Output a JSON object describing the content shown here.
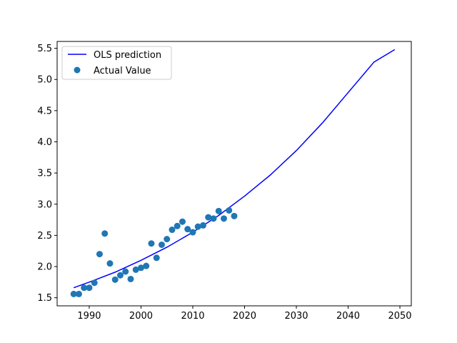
{
  "chart_data": {
    "type": "scatter",
    "title": "",
    "xlabel": "",
    "ylabel": "",
    "xlim": [
      1983.8,
      2052.2
    ],
    "ylim": [
      1.37,
      5.61
    ],
    "xticks": [
      1990,
      2000,
      2010,
      2020,
      2030,
      2040,
      2050
    ],
    "yticks": [
      1.5,
      2.0,
      2.5,
      3.0,
      3.5,
      4.0,
      4.5,
      5.0,
      5.5
    ],
    "xtick_labels": [
      "1990",
      "2000",
      "2010",
      "2020",
      "2030",
      "2040",
      "2050"
    ],
    "ytick_labels": [
      "1.5",
      "2.0",
      "2.5",
      "3.0",
      "3.5",
      "4.0",
      "4.5",
      "5.0",
      "5.5"
    ],
    "grid": false,
    "legend_position": "top-left",
    "series": [
      {
        "name": "OLS prediction",
        "type": "line",
        "color": "#0000ff",
        "x": [
          1987,
          1990,
          1995,
          2000,
          2005,
          2010,
          2015,
          2020,
          2025,
          2030,
          2035,
          2040,
          2045,
          2049
        ],
        "y": [
          1.66,
          1.75,
          1.91,
          2.1,
          2.31,
          2.55,
          2.82,
          3.13,
          3.47,
          3.86,
          4.3,
          4.79,
          5.28,
          5.48
        ]
      },
      {
        "name": "Actual Value",
        "type": "scatter",
        "color": "#1f77b4",
        "x": [
          1987,
          1988,
          1989,
          1990,
          1991,
          1992,
          1993,
          1994,
          1995,
          1996,
          1997,
          1998,
          1999,
          2000,
          2001,
          2002,
          2003,
          2004,
          2005,
          2006,
          2007,
          2008,
          2009,
          2010,
          2011,
          2012,
          2013,
          2014,
          2015,
          2016,
          2017,
          2018
        ],
        "y": [
          1.56,
          1.56,
          1.66,
          1.66,
          1.74,
          2.2,
          2.53,
          2.05,
          1.79,
          1.86,
          1.92,
          1.8,
          1.95,
          1.98,
          2.01,
          2.37,
          2.14,
          2.35,
          2.44,
          2.59,
          2.65,
          2.72,
          2.6,
          2.55,
          2.64,
          2.66,
          2.79,
          2.77,
          2.89,
          2.77,
          2.9,
          2.81
        ]
      }
    ]
  }
}
